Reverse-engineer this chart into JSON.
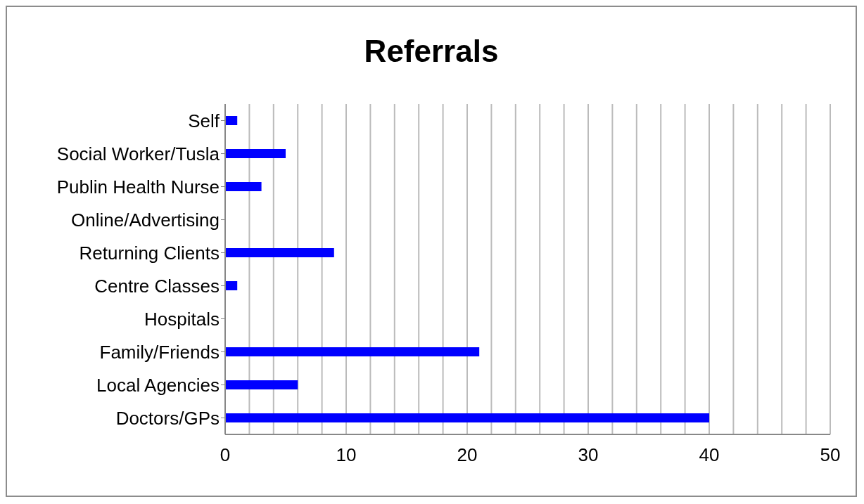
{
  "chart_data": {
    "type": "bar",
    "orientation": "horizontal",
    "title": "Referrals",
    "categories": [
      "Self",
      "Social Worker/Tusla",
      "Publin Health Nurse",
      "Online/Advertising",
      "Returning Clients",
      "Centre Classes",
      "Hospitals",
      "Family/Friends",
      "Local Agencies",
      "Doctors/GPs"
    ],
    "values": [
      1,
      5,
      3,
      0,
      9,
      1,
      0,
      21,
      6,
      40
    ],
    "color": "#0000ff",
    "xlim": [
      0,
      50
    ],
    "xticks": [
      0,
      {
        "value": 2,
        "label": null
      },
      {
        "value": 4,
        "label": null
      },
      {
        "value": 6,
        "label": null
      },
      {
        "value": 8,
        "label": null
      },
      10,
      {
        "value": 12,
        "label": null
      },
      {
        "value": 14,
        "label": null
      },
      {
        "value": 16,
        "label": null
      },
      {
        "value": 18,
        "label": null
      },
      20,
      {
        "value": 22,
        "label": null
      },
      {
        "value": 24,
        "label": null
      },
      {
        "value": 26,
        "label": null
      },
      {
        "value": 28,
        "label": null
      },
      30,
      {
        "value": 32,
        "label": null
      },
      {
        "value": 34,
        "label": null
      },
      {
        "value": 36,
        "label": null
      },
      {
        "value": 38,
        "label": null
      },
      40,
      {
        "value": 42,
        "label": null
      },
      {
        "value": 44,
        "label": null
      },
      {
        "value": 46,
        "label": null
      },
      {
        "value": 48,
        "label": null
      },
      50
    ],
    "grid": "x"
  }
}
